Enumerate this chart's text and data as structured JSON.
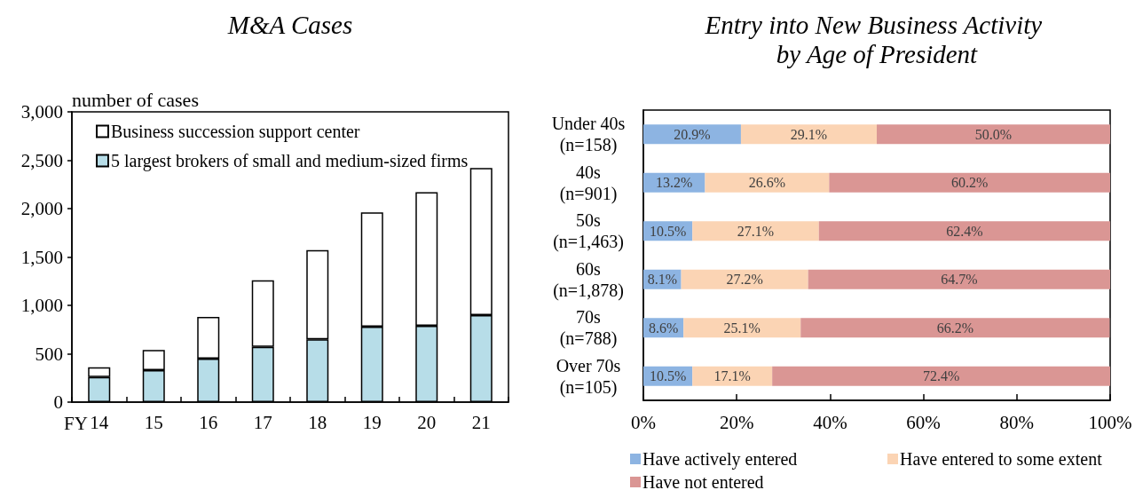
{
  "chart_data": [
    {
      "type": "bar",
      "title": "M&A Cases",
      "xlabel": "FY",
      "ylabel": "number of cases",
      "categories": [
        "14",
        "15",
        "16",
        "17",
        "18",
        "19",
        "20",
        "21"
      ],
      "stacked": true,
      "series": [
        {
          "name": "5 largest brokers of small and medium-sized firms",
          "color": "#b7dde8",
          "values": [
            260,
            330,
            450,
            570,
            650,
            780,
            790,
            900
          ]
        },
        {
          "name": "Business succession support center",
          "color": "#ffffff",
          "values": [
            100,
            210,
            430,
            690,
            920,
            1180,
            1380,
            1520
          ]
        }
      ],
      "ylim": [
        0,
        3000
      ],
      "yticks": [
        0,
        500,
        {
          "value": 1000,
          "label": "1,000"
        },
        {
          "value": 1500,
          "label": "1,500"
        },
        {
          "value": 2000,
          "label": "2,000"
        },
        {
          "value": 2500,
          "label": "2,500"
        },
        {
          "value": 3000,
          "label": "3,000"
        }
      ],
      "legend": "top left"
    },
    {
      "type": "bar",
      "orientation": "horizontal",
      "stacked": true,
      "title": "Entry into New Business Activity by Age of President",
      "categories": [
        "Under 40s (n=158)",
        "40s (n=901)",
        "50s (n=1,463)",
        "60s (n=1,878)",
        "70s (n=788)",
        "Over 70s (n=105)"
      ],
      "series": [
        {
          "name": "Have actively entered",
          "color": "#8db4e2",
          "values": [
            20.9,
            13.2,
            10.5,
            8.1,
            8.6,
            10.5
          ],
          "value_labels": [
            "20.9%",
            "13.2%",
            "10.5%",
            "8.1%",
            "8.6%",
            "10.5%"
          ]
        },
        {
          "name": "Have entered to some extent",
          "color": "#fbd4b4",
          "values": [
            29.1,
            26.6,
            27.1,
            27.2,
            25.1,
            17.1
          ],
          "value_labels": [
            "29.1%",
            "26.6%",
            "27.1%",
            "27.2%",
            "25.1%",
            "17.1%"
          ]
        },
        {
          "name": "Have not entered",
          "color": "#da9694",
          "values": [
            50.0,
            60.2,
            62.4,
            64.7,
            66.2,
            72.4
          ],
          "value_labels": [
            "50.0%",
            "60.2%",
            "62.4%",
            "64.7%",
            "66.2%",
            "72.4%"
          ]
        }
      ],
      "xlim": [
        0,
        100
      ],
      "xticks": [
        {
          "value": 0,
          "label": "0%"
        },
        {
          "value": 20,
          "label": "20%"
        },
        {
          "value": 40,
          "label": "40%"
        },
        {
          "value": 60,
          "label": "60%"
        },
        {
          "value": 80,
          "label": "80%"
        },
        {
          "value": 100,
          "label": "100%"
        }
      ],
      "legend": "bottom"
    }
  ]
}
